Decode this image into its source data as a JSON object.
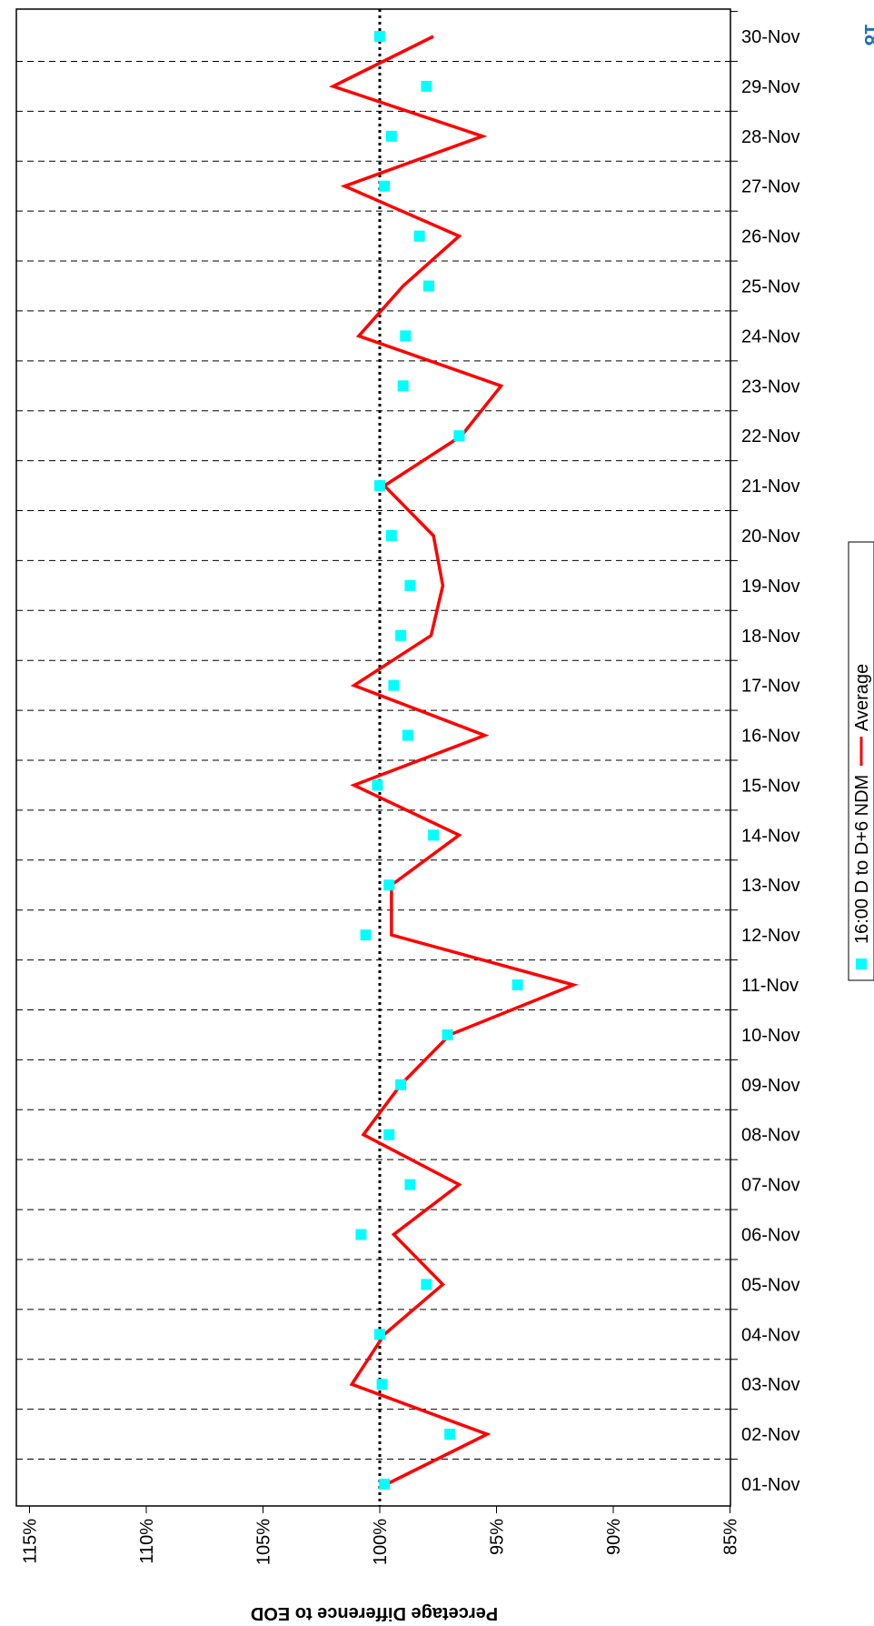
{
  "page_number": "18",
  "chart_data": {
    "type": "line",
    "orientation": "rotated-90-clockwise",
    "title": "",
    "xlabel": "",
    "ylabel": "Percetage Difference to EOD",
    "ylim": [
      85,
      115
    ],
    "y_ticks": [
      "85%",
      "90%",
      "95%",
      "100%",
      "105%",
      "110%",
      "115%"
    ],
    "categories": [
      "01-Nov",
      "02-Nov",
      "03-Nov",
      "04-Nov",
      "05-Nov",
      "06-Nov",
      "07-Nov",
      "08-Nov",
      "09-Nov",
      "10-Nov",
      "11-Nov",
      "12-Nov",
      "13-Nov",
      "14-Nov",
      "15-Nov",
      "16-Nov",
      "17-Nov",
      "18-Nov",
      "19-Nov",
      "20-Nov",
      "21-Nov",
      "22-Nov",
      "23-Nov",
      "24-Nov",
      "25-Nov",
      "26-Nov",
      "27-Nov",
      "28-Nov",
      "29-Nov",
      "30-Nov"
    ],
    "reference_line": 100,
    "grid": "dashed, one line between each category",
    "legend_position": "right side (rotated)",
    "series": [
      {
        "name": "16:00 D to D+6 NDM",
        "kind": "scatter",
        "marker": "square",
        "color": "#00ffff",
        "values": [
          99.8,
          97.0,
          99.9,
          100.0,
          98.0,
          100.8,
          98.7,
          99.6,
          99.1,
          97.1,
          94.1,
          100.6,
          99.6,
          97.7,
          100.1,
          98.8,
          99.4,
          99.1,
          98.7,
          99.5,
          100.0,
          96.6,
          99.0,
          98.9,
          97.9,
          98.3,
          99.8,
          99.5,
          98.0,
          100.0
        ]
      },
      {
        "name": "Average",
        "kind": "line",
        "color": "#ff0000",
        "values": [
          99.7,
          95.4,
          101.2,
          99.8,
          97.3,
          99.4,
          96.6,
          100.7,
          99.1,
          97.0,
          91.7,
          99.5,
          99.5,
          96.6,
          101.1,
          95.5,
          101.1,
          97.8,
          97.3,
          97.7,
          99.8,
          96.5,
          94.8,
          100.9,
          99.0,
          96.6,
          101.5,
          95.6,
          102.0,
          97.7
        ]
      }
    ]
  }
}
